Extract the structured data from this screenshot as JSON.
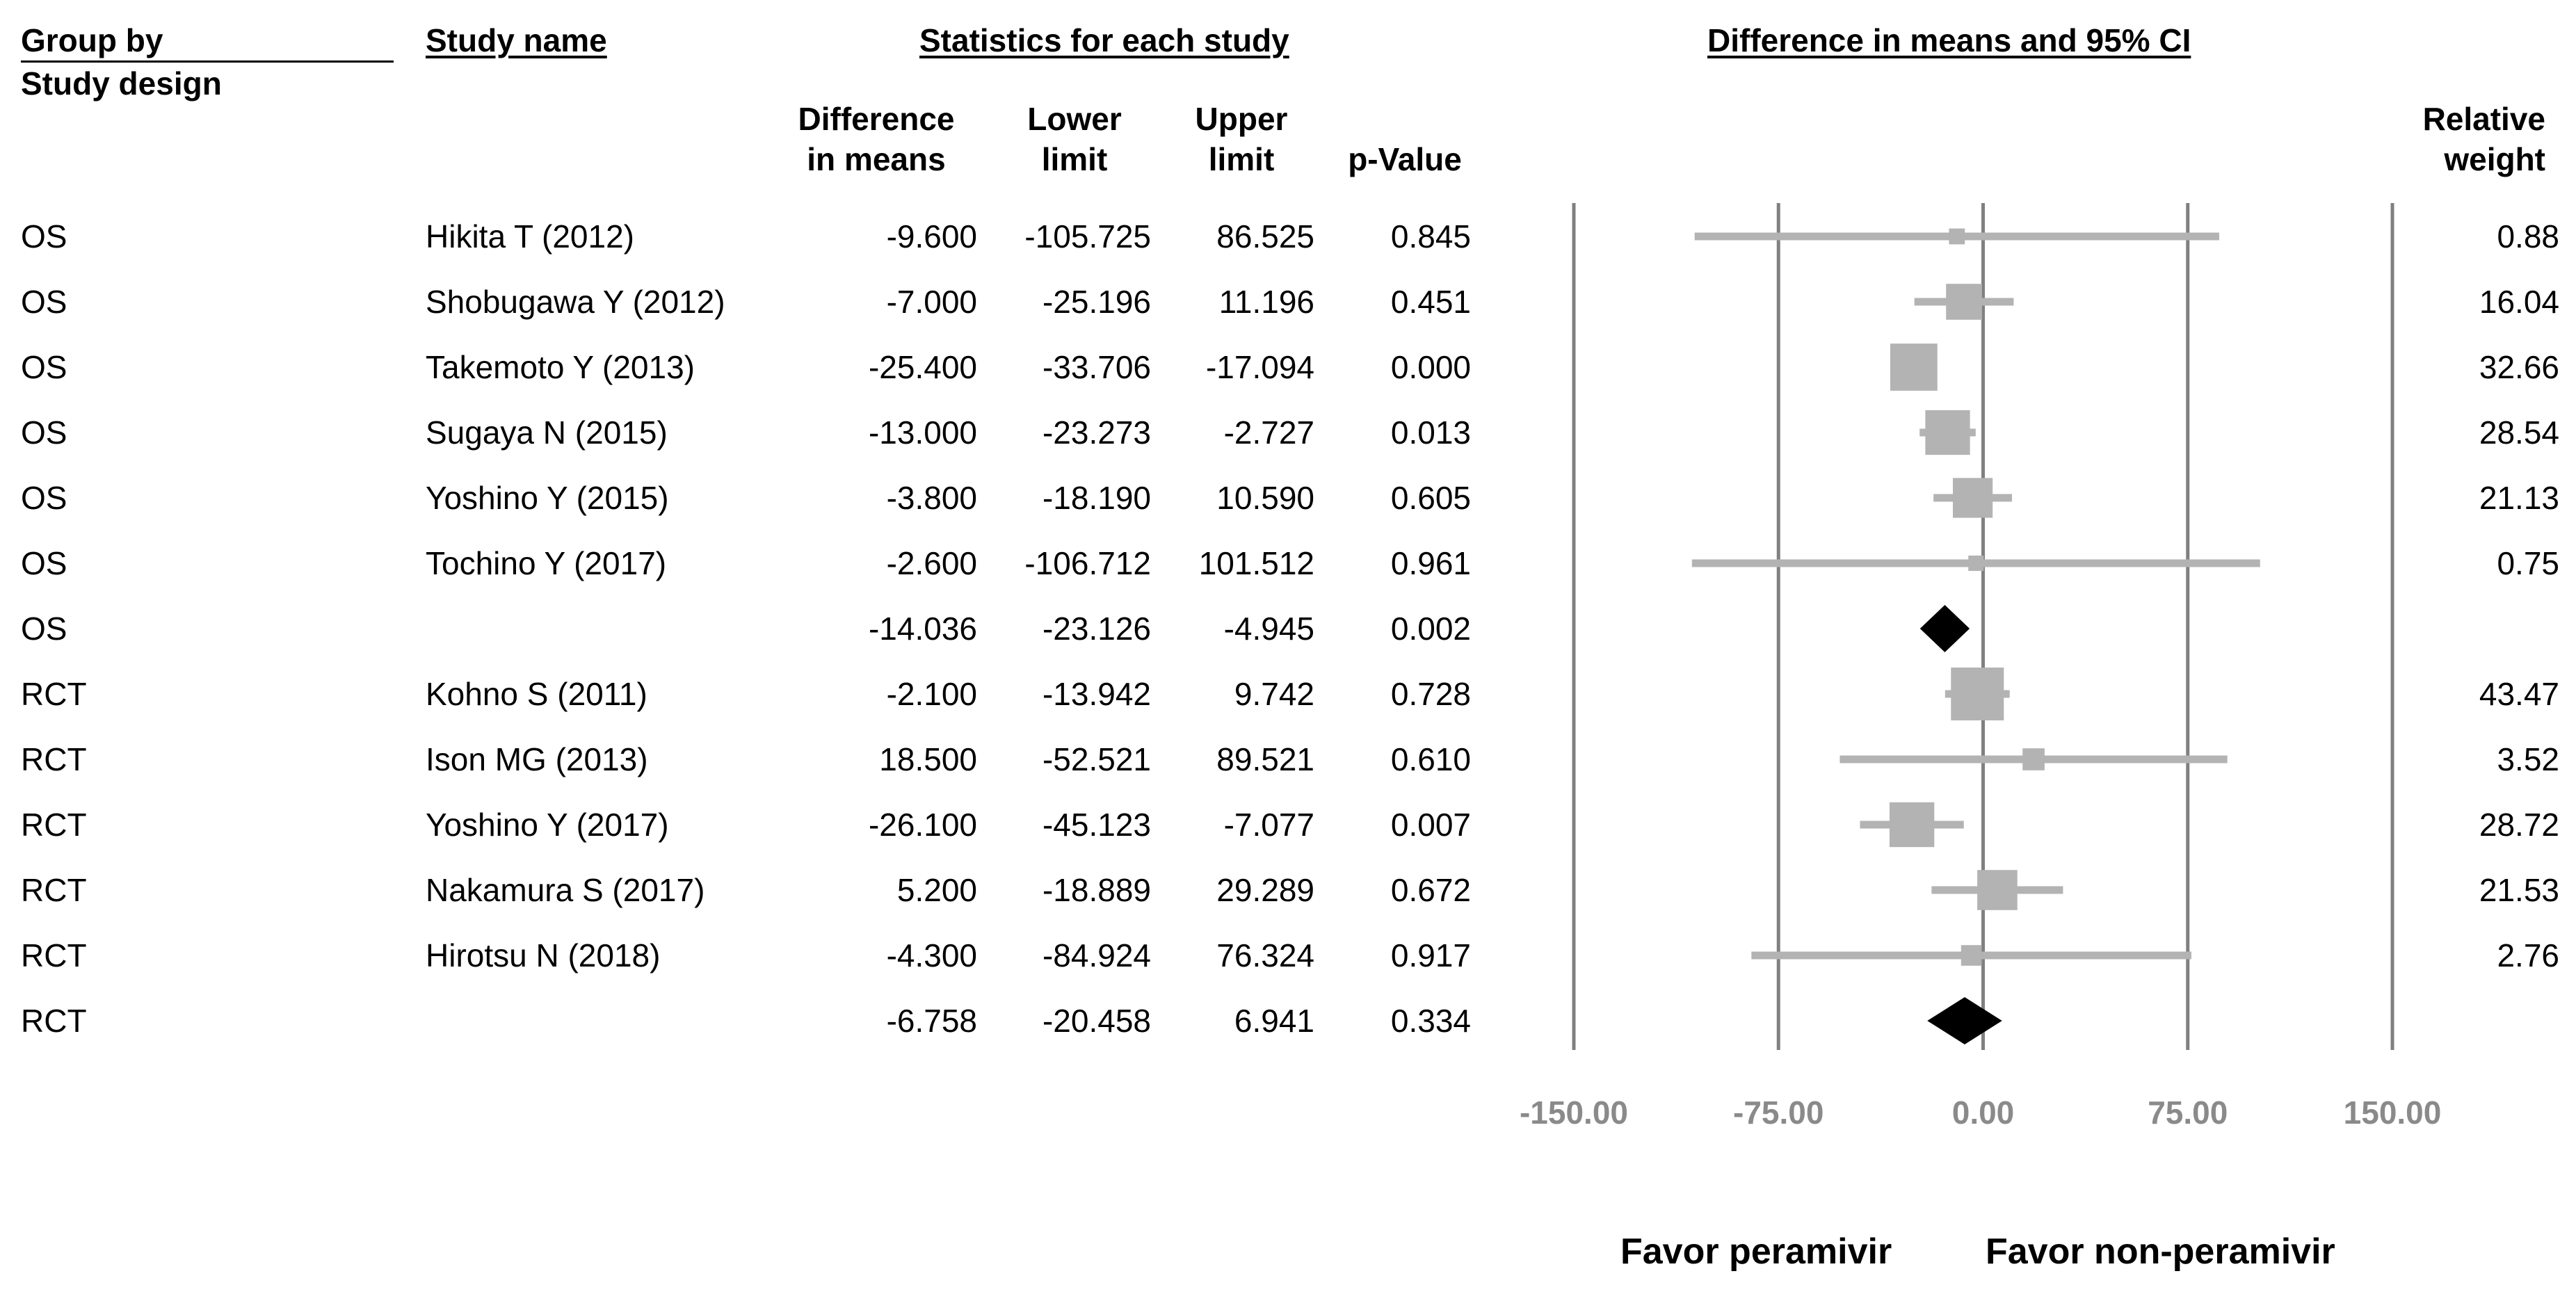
{
  "chart_data": {
    "type": "forest",
    "header": {
      "group_by": "Group by",
      "group_by_sub": "Study design",
      "study_name": "Study name",
      "stats_title": "Statistics for each study",
      "plot_title": "Difference in means and 95% CI",
      "col_diff_l1": "Difference",
      "col_diff_l2": "in means",
      "col_lower_l1": "Lower",
      "col_lower_l2": "limit",
      "col_upper_l1": "Upper",
      "col_upper_l2": "limit",
      "col_p": "p-Value",
      "col_weight_l1": "Relative",
      "col_weight_l2": "weight"
    },
    "xlim": [
      -150,
      150
    ],
    "ticks": [
      -150,
      -75,
      0,
      75,
      150
    ],
    "tick_labels": [
      "-150.00",
      "-75.00",
      "0.00",
      "75.00",
      "150.00"
    ],
    "favor_left": "Favor peramivir",
    "favor_right": "Favor non-peramivir",
    "rows": [
      {
        "group": "OS",
        "study": "Hikita  T (2012)",
        "diff": "-9.600",
        "lower": "-105.725",
        "upper": "86.525",
        "p": "0.845",
        "weight": "0.88",
        "d": -9.6,
        "lo": -105.725,
        "hi": 86.525,
        "w": 0.88,
        "summary": false
      },
      {
        "group": "OS",
        "study": "Shobugawa Y (2012)",
        "diff": "-7.000",
        "lower": "-25.196",
        "upper": "11.196",
        "p": "0.451",
        "weight": "16.04",
        "d": -7.0,
        "lo": -25.196,
        "hi": 11.196,
        "w": 16.04,
        "summary": false
      },
      {
        "group": "OS",
        "study": "Takemoto  Y (2013)",
        "diff": "-25.400",
        "lower": "-33.706",
        "upper": "-17.094",
        "p": "0.000",
        "weight": "32.66",
        "d": -25.4,
        "lo": -33.706,
        "hi": -17.094,
        "w": 32.66,
        "summary": false
      },
      {
        "group": "OS",
        "study": "Sugaya N (2015)",
        "diff": "-13.000",
        "lower": "-23.273",
        "upper": "-2.727",
        "p": "0.013",
        "weight": "28.54",
        "d": -13.0,
        "lo": -23.273,
        "hi": -2.727,
        "w": 28.54,
        "summary": false
      },
      {
        "group": "OS",
        "study": "Yoshino Y (2015)",
        "diff": "-3.800",
        "lower": "-18.190",
        "upper": "10.590",
        "p": "0.605",
        "weight": "21.13",
        "d": -3.8,
        "lo": -18.19,
        "hi": 10.59,
        "w": 21.13,
        "summary": false
      },
      {
        "group": "OS",
        "study": "Tochino Y (2017)",
        "diff": "-2.600",
        "lower": "-106.712",
        "upper": "101.512",
        "p": "0.961",
        "weight": "0.75",
        "d": -2.6,
        "lo": -106.712,
        "hi": 101.512,
        "w": 0.75,
        "summary": false
      },
      {
        "group": "OS",
        "study": "",
        "diff": "-14.036",
        "lower": "-23.126",
        "upper": "-4.945",
        "p": "0.002",
        "weight": "",
        "d": -14.036,
        "lo": -23.126,
        "hi": -4.945,
        "w": 0,
        "summary": true
      },
      {
        "group": "RCT",
        "study": "Kohno S (2011)",
        "diff": "-2.100",
        "lower": "-13.942",
        "upper": "9.742",
        "p": "0.728",
        "weight": "43.47",
        "d": -2.1,
        "lo": -13.942,
        "hi": 9.742,
        "w": 43.47,
        "summary": false
      },
      {
        "group": "RCT",
        "study": "Ison MG (2013)",
        "diff": "18.500",
        "lower": "-52.521",
        "upper": "89.521",
        "p": "0.610",
        "weight": "3.52",
        "d": 18.5,
        "lo": -52.521,
        "hi": 89.521,
        "w": 3.52,
        "summary": false
      },
      {
        "group": "RCT",
        "study": "Yoshino Y (2017)",
        "diff": "-26.100",
        "lower": "-45.123",
        "upper": "-7.077",
        "p": "0.007",
        "weight": "28.72",
        "d": -26.1,
        "lo": -45.123,
        "hi": -7.077,
        "w": 28.72,
        "summary": false
      },
      {
        "group": "RCT",
        "study": "Nakamura S (2017)",
        "diff": "5.200",
        "lower": "-18.889",
        "upper": "29.289",
        "p": "0.672",
        "weight": "21.53",
        "d": 5.2,
        "lo": -18.889,
        "hi": 29.289,
        "w": 21.53,
        "summary": false
      },
      {
        "group": "RCT",
        "study": "Hirotsu N (2018)",
        "diff": "-4.300",
        "lower": "-84.924",
        "upper": "76.324",
        "p": "0.917",
        "weight": "2.76",
        "d": -4.3,
        "lo": -84.924,
        "hi": 76.324,
        "w": 2.76,
        "summary": false
      },
      {
        "group": "RCT",
        "study": "",
        "diff": "-6.758",
        "lower": "-20.458",
        "upper": "6.941",
        "p": "0.334",
        "weight": "",
        "d": -6.758,
        "lo": -20.458,
        "hi": 6.941,
        "w": 0,
        "summary": true
      }
    ]
  },
  "colors": {
    "line": "#808080",
    "marker": "#b3b3b3",
    "summary": "#000000",
    "tick_text": "#8a8a8a"
  }
}
